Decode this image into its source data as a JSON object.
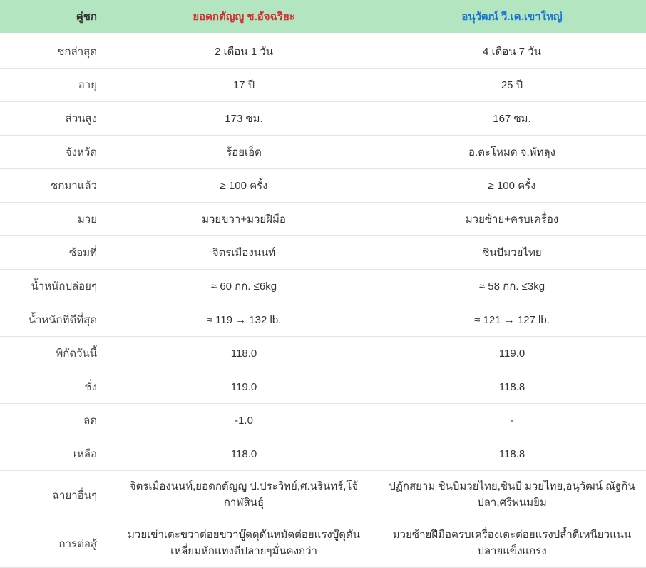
{
  "header": {
    "label_col": "คู่ชก",
    "fighter_red": "ยอดกตัญญู ช.อัจฉริยะ",
    "fighter_blue": "อนุวัฒน์ วี.เค.เขาใหญ่",
    "header_bg": "#b3e5c1",
    "red_color": "#d32f2f",
    "blue_color": "#1976d2"
  },
  "rows": [
    {
      "label": "ชกล่าสุด",
      "red": "2 เดือน 1 วัน",
      "blue": "4 เดือน 7 วัน"
    },
    {
      "label": "อายุ",
      "red": "17 ปี",
      "blue": "25 ปี"
    },
    {
      "label": "ส่วนสูง",
      "red": "173 ซม.",
      "blue": "167 ซม."
    },
    {
      "label": "จังหวัด",
      "red": "ร้อยเอ็ด",
      "blue": "อ.ตะโหมด จ.พัทลุง"
    },
    {
      "label": "ชกมาแล้ว",
      "red": "≥ 100 ครั้ง",
      "blue": "≥ 100 ครั้ง"
    },
    {
      "label": "มวย",
      "red": "มวยขวา+มวยฝีมือ",
      "blue": "มวยซ้าย+ครบเครื่อง"
    },
    {
      "label": "ซ้อมที่",
      "red": "จิตรเมืองนนท์",
      "blue": "ซินบีมวยไทย"
    },
    {
      "label": "น้ำหนักปล่อยๆ",
      "red": "≈ 60 กก. ≤6kg",
      "blue": "≈ 58 กก. ≤3kg"
    },
    {
      "label": "น้ำหนักที่ดีที่สุด",
      "red": "≈ 119 → 132 lb.",
      "blue": "≈ 121 → 127 lb."
    },
    {
      "label": "พิกัดวันนี้",
      "red": "118.0",
      "blue": "119.0"
    },
    {
      "label": "ชั่ง",
      "red": "119.0",
      "blue": "118.8"
    },
    {
      "label": "ลด",
      "red": "-1.0",
      "blue": "-"
    },
    {
      "label": "เหลือ",
      "red": "118.0",
      "blue": "118.8"
    },
    {
      "label": "ฉายาอื่นๆ",
      "red": "จิตรเมืองนนท์,ยอดกตัญญู ป.ประวิทย์,ศ.นรินทร์,โจ้ กาฬสินธุ์",
      "blue": "ปฏักสยาม ซินบีมวยไทย,ซินบี มวยไทย,อนุวัฒน์ ณัฐกินปลา,ศรีพนมยิม"
    },
    {
      "label": "การต่อสู้",
      "red": "มวยเข่าเตะขวาต่อยขวาบู๊ดดุดันหมัดต่อยแรงบู๊ดุดันเหลี่ยมหักแทงดีปลายๆมั่นคงกว่า",
      "blue": "มวยซ้ายฝีมือครบเครื่องเตะต่อยแรงปล้ำตีเหนียวแน่นปลายแข็งแกร่ง"
    }
  ],
  "styles": {
    "row_border_color": "#e5e5e5",
    "text_color": "#333333",
    "background_color": "#ffffff",
    "fontsize_body": 15,
    "fontsize_header": 15
  }
}
